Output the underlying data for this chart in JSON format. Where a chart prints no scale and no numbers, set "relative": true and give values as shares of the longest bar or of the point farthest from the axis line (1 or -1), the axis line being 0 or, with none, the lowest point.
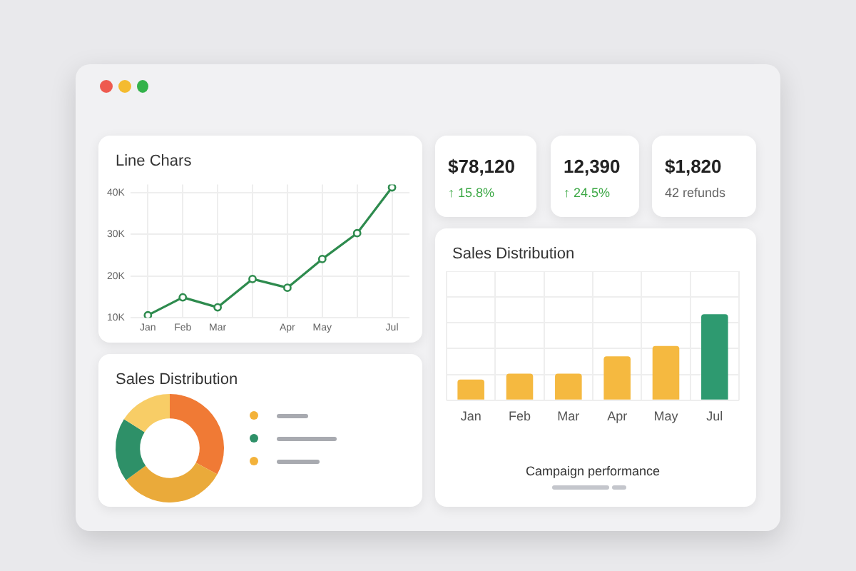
{
  "chart_data": [
    {
      "type": "line",
      "title": "Line Chars",
      "categories": [
        "Jan",
        "Feb",
        "Mar",
        null,
        "Apr",
        "May",
        null,
        "Jul"
      ],
      "values": [
        10600,
        14900,
        12500,
        19300,
        17200,
        24100,
        30300,
        41300
      ],
      "color": "#2e8b4e",
      "ylim": [
        10000,
        42000
      ],
      "yticks": [
        {
          "value": 10000,
          "label": "10K"
        },
        {
          "value": 20000,
          "label": "20K"
        },
        {
          "value": 30000,
          "label": "30K"
        },
        {
          "value": 40000,
          "label": "40K"
        }
      ],
      "grid": true,
      "marker": "circle"
    },
    {
      "type": "other",
      "annotations": [
        "$78,120",
        "↑ 15.8%",
        "12,390",
        "↑ 24.5%",
        "$1,820",
        "42 refunds"
      ]
    },
    {
      "type": "bar",
      "title": "Sales Distribution",
      "xlabel": "Campaign performance",
      "categories": [
        "Jan",
        "Feb",
        "Mar",
        "Apr",
        "May",
        "Jul"
      ],
      "values": [
        0.24,
        0.31,
        0.31,
        0.51,
        0.63,
        1
      ],
      "colors": [
        "#f5b940",
        "#f5b940",
        "#f5b940",
        "#f5b940",
        "#f5b940",
        "#2e9a70"
      ],
      "relative": true,
      "grid": true
    },
    {
      "type": "donut",
      "title": "Sales Distribution",
      "categories": [
        null,
        null,
        null,
        null
      ],
      "values": [
        33,
        32,
        19,
        16
      ],
      "colors": [
        "#f07a35",
        "#eaaa3a",
        "#2e9068",
        "#f8cd66"
      ]
    }
  ]
}
